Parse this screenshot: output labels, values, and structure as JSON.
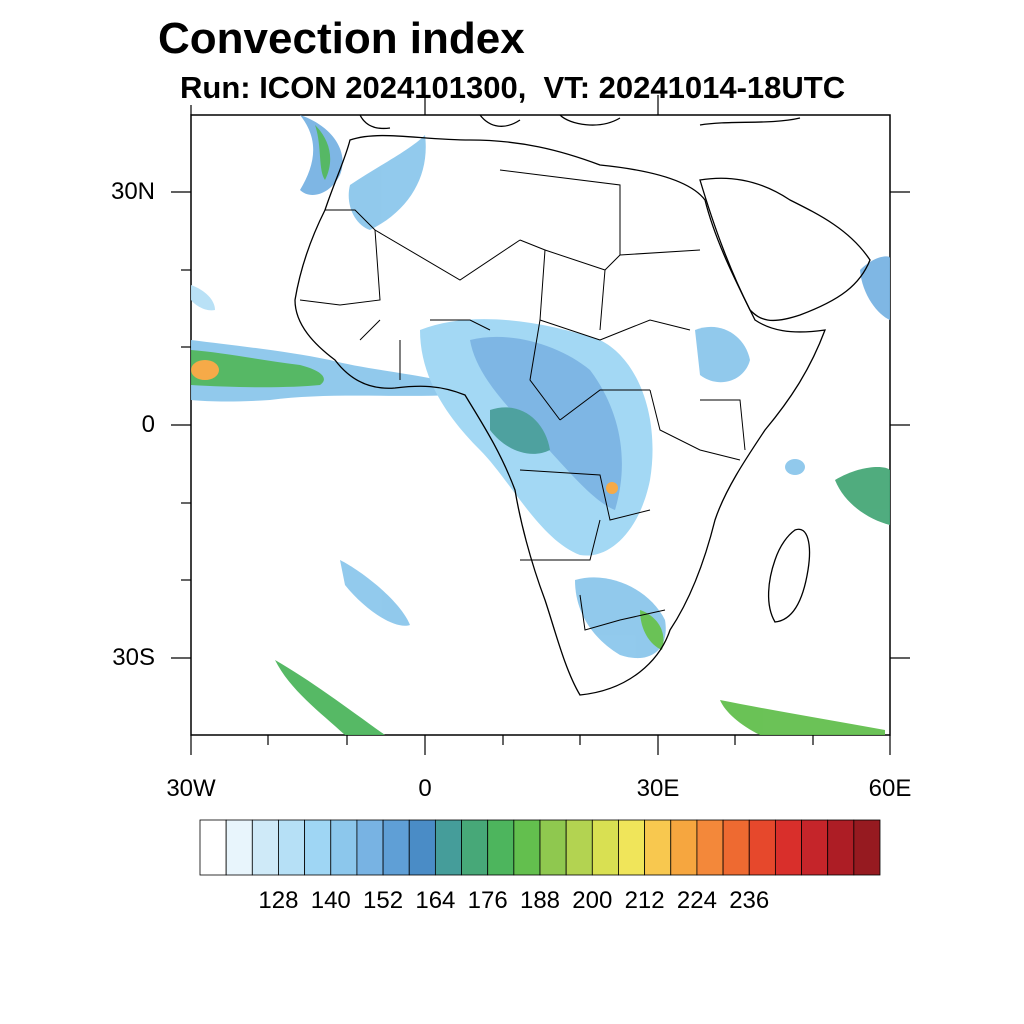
{
  "title": "Convection index",
  "subtitle": "Run: ICON 2024101300,  VT: 20241014-18UTC",
  "axes": {
    "lat_labels": [
      "30N",
      "0",
      "30S"
    ],
    "lon_labels": [
      "30W",
      "0",
      "30E",
      "60E"
    ]
  },
  "colorbar": {
    "labels": [
      "128",
      "140",
      "152",
      "164",
      "176",
      "188",
      "200",
      "212",
      "224",
      "236"
    ],
    "colors": [
      "#ffffff",
      "#e8f5fc",
      "#cfeaf8",
      "#b6e0f6",
      "#9fd6f4",
      "#8cc7ec",
      "#78b3e3",
      "#5f9fd6",
      "#4a8cc6",
      "#459d9a",
      "#47a878",
      "#4db55d",
      "#63bf4e",
      "#8fc84f",
      "#b3d351",
      "#d9e052",
      "#f0e55a",
      "#f8c84f",
      "#f6a63f",
      "#f3883a",
      "#ee6a31",
      "#e6482c",
      "#d92f2b",
      "#c5252a",
      "#ad1d25",
      "#961a20"
    ]
  }
}
